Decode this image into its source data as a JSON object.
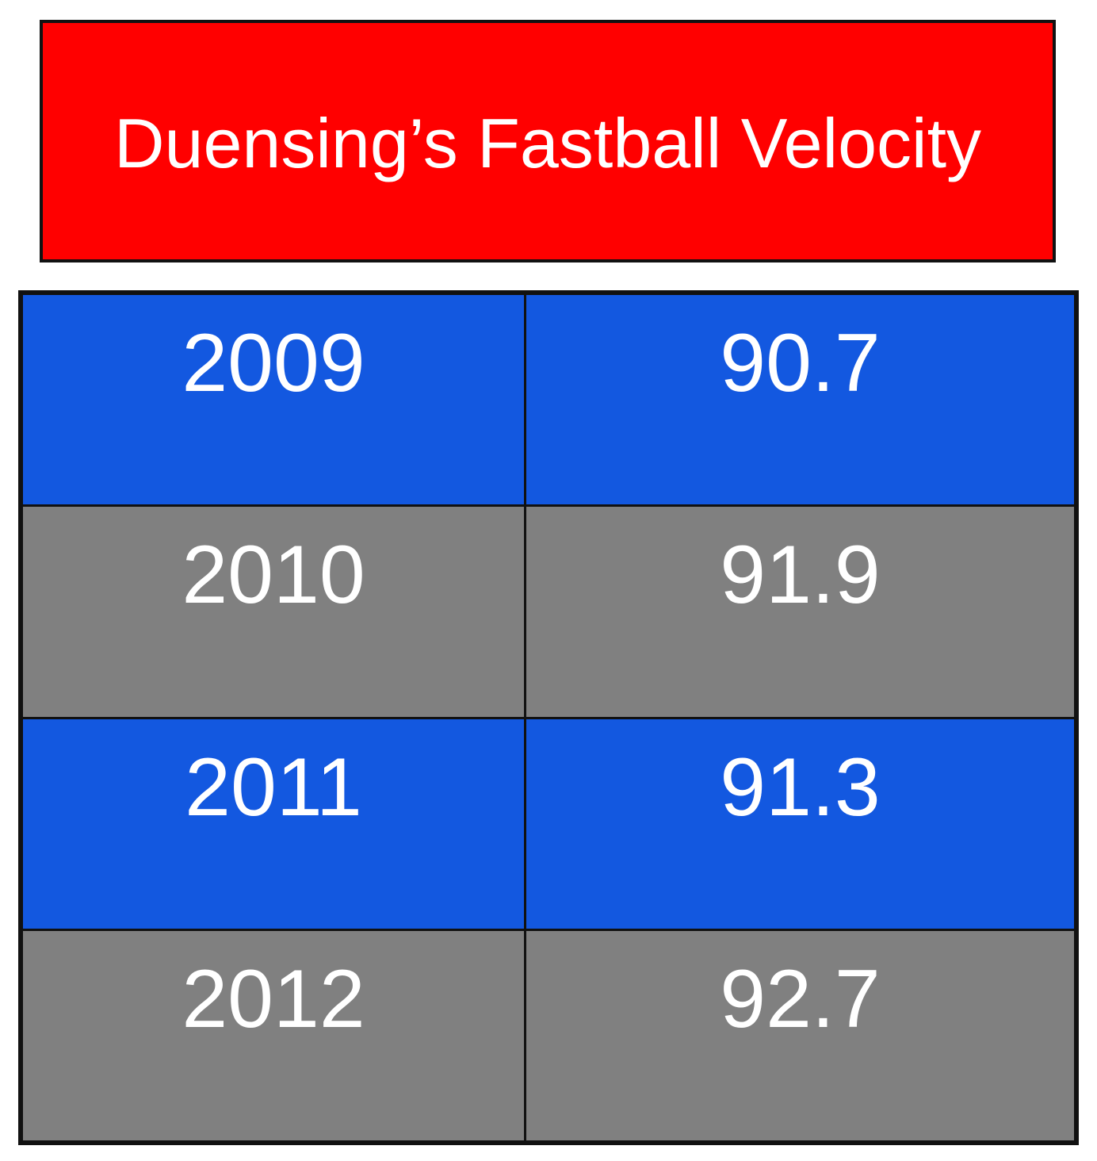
{
  "chart_data": {
    "type": "table",
    "title": "Duensing’s Fastball Velocity",
    "rows": [
      {
        "year": "2009",
        "velocity": "90.7",
        "color": "#1358e0"
      },
      {
        "year": "2010",
        "velocity": "91.9",
        "color": "#808080"
      },
      {
        "year": "2011",
        "velocity": "91.3",
        "color": "#1358e0"
      },
      {
        "year": "2012",
        "velocity": "92.7",
        "color": "#808080"
      }
    ]
  },
  "colors": {
    "title_background": "#ff0000",
    "border": "#111111",
    "text": "#ffffff"
  }
}
